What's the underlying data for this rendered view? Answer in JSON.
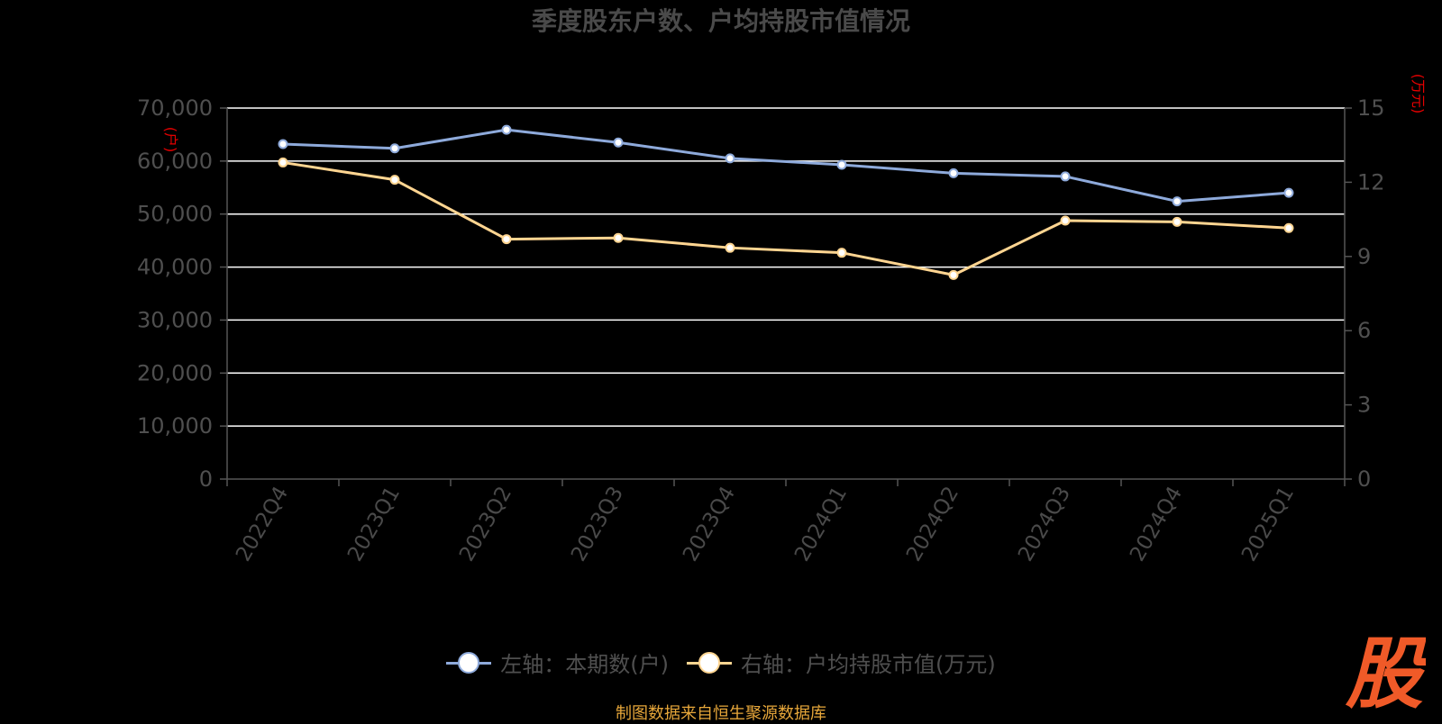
{
  "title": "季度股东户数、户均持股市值情况",
  "source": "制图数据来自恒生聚源数据库",
  "logo_text": "股",
  "colors": {
    "background": "#000000",
    "grid": "#ffffff",
    "axis": "#555555",
    "series_left": "#8eaadb",
    "series_right": "#ffd591",
    "axis_unit": "#e60000",
    "source": "#e7a73a",
    "logo": "#f05a28"
  },
  "chart_data": {
    "type": "line",
    "title": "季度股东户数、户均持股市值情况",
    "categories": [
      "2022Q4",
      "2023Q1",
      "2023Q2",
      "2023Q3",
      "2023Q4",
      "2024Q1",
      "2024Q2",
      "2024Q3",
      "2024Q4",
      "2025Q1"
    ],
    "y_left": {
      "unit": "(户)",
      "ylim": [
        0,
        70000
      ],
      "ticks": [
        "0",
        "10,000",
        "20,000",
        "30,000",
        "40,000",
        "50,000",
        "60,000",
        "70,000"
      ]
    },
    "y_right": {
      "unit": "(万元)",
      "ylim": [
        0,
        15
      ],
      "ticks": [
        "0",
        "3",
        "6",
        "9",
        "12",
        "15"
      ]
    },
    "series": [
      {
        "name": "左轴：本期数(户)",
        "axis": "left",
        "values": [
          63200,
          62400,
          65900,
          63500,
          60500,
          59300,
          57700,
          57100,
          52400,
          54000
        ]
      },
      {
        "name": "右轴：户均持股市值(万元)",
        "axis": "right",
        "values": [
          12.8,
          12.1,
          9.7,
          9.75,
          9.35,
          9.15,
          8.25,
          10.45,
          10.4,
          10.15
        ]
      }
    ],
    "grid": true,
    "legend": "bottom-center"
  }
}
